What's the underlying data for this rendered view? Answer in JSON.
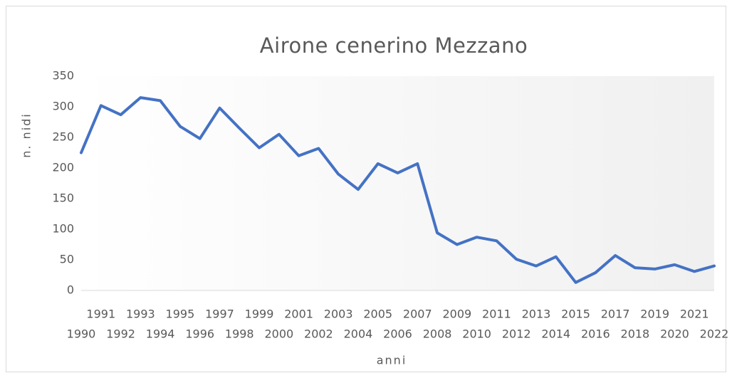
{
  "chart_data": {
    "type": "line",
    "title": "Airone cenerino Mezzano",
    "x_label": "anni",
    "y_label": "n. nidi",
    "categories": [
      "1990",
      "1991",
      "1992",
      "1993",
      "1994",
      "1995",
      "1996",
      "1997",
      "1998",
      "1999",
      "2000",
      "2001",
      "2002",
      "2003",
      "2004",
      "2005",
      "2006",
      "2007",
      "2008",
      "2009",
      "2010",
      "2011",
      "2012",
      "2013",
      "2014",
      "2015",
      "2016",
      "2017",
      "2018",
      "2019",
      "2020",
      "2021",
      "2022"
    ],
    "series": [
      {
        "name": "n. nidi",
        "color": "#4472c4",
        "values": [
          225,
          302,
          287,
          315,
          310,
          268,
          248,
          298,
          265,
          233,
          255,
          220,
          232,
          190,
          165,
          207,
          192,
          207,
          94,
          75,
          87,
          81,
          51,
          40,
          55,
          13,
          29,
          57,
          37,
          35,
          42,
          31,
          40
        ]
      }
    ],
    "ylim": [
      0,
      350
    ],
    "yticks": [
      0,
      50,
      100,
      150,
      200,
      250,
      300,
      350
    ],
    "grid": false
  }
}
